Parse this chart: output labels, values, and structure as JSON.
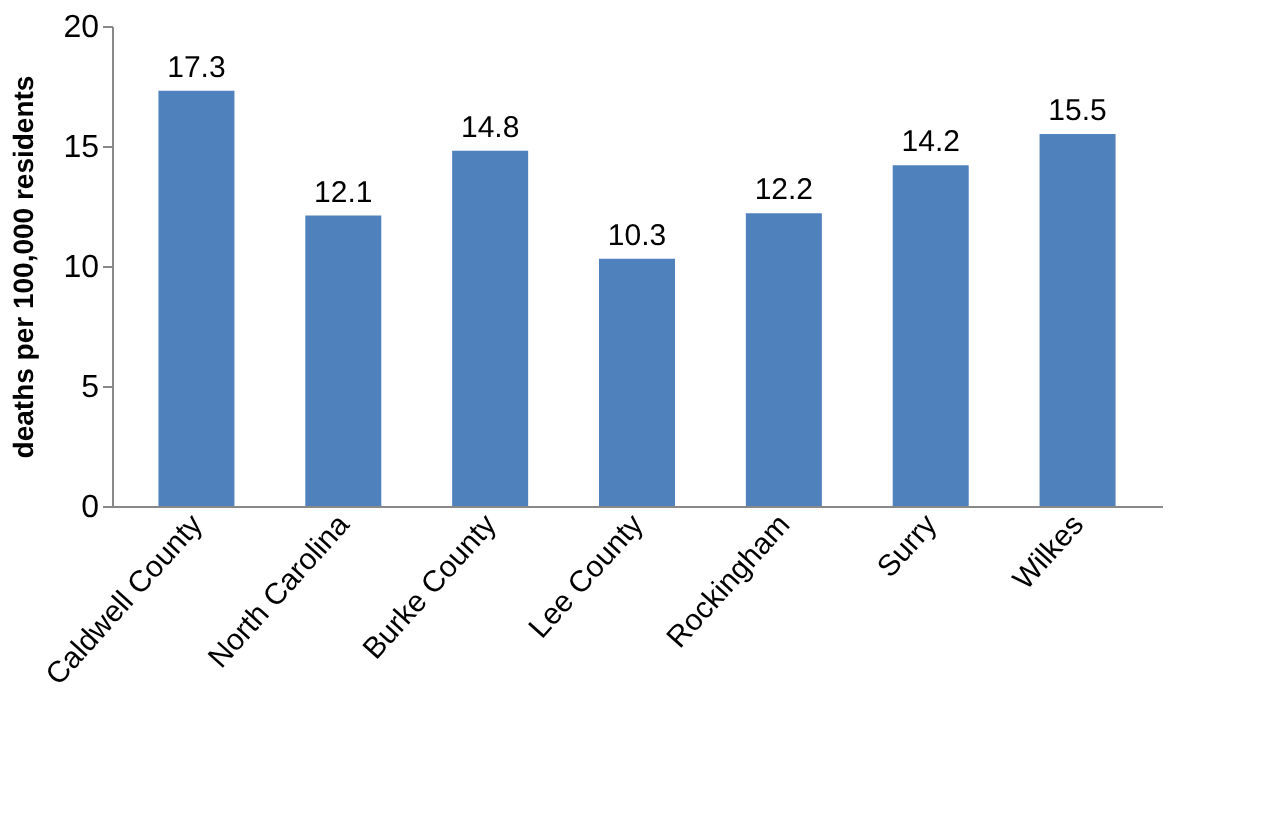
{
  "chart_data": {
    "type": "bar",
    "ylabel": "deaths per 100,000 residents",
    "categories": [
      "Caldwell County",
      "North Carolina",
      "Burke County",
      "Lee County",
      "Rockingham",
      "Surry",
      "Wilkes"
    ],
    "values": [
      17.3,
      12.1,
      14.8,
      10.3,
      12.2,
      14.2,
      15.5
    ],
    "color": "#4f81bd",
    "ylim": [
      0,
      20
    ],
    "yticks": [
      0,
      5,
      10,
      15,
      20
    ],
    "grid": false,
    "data_labels": true
  }
}
